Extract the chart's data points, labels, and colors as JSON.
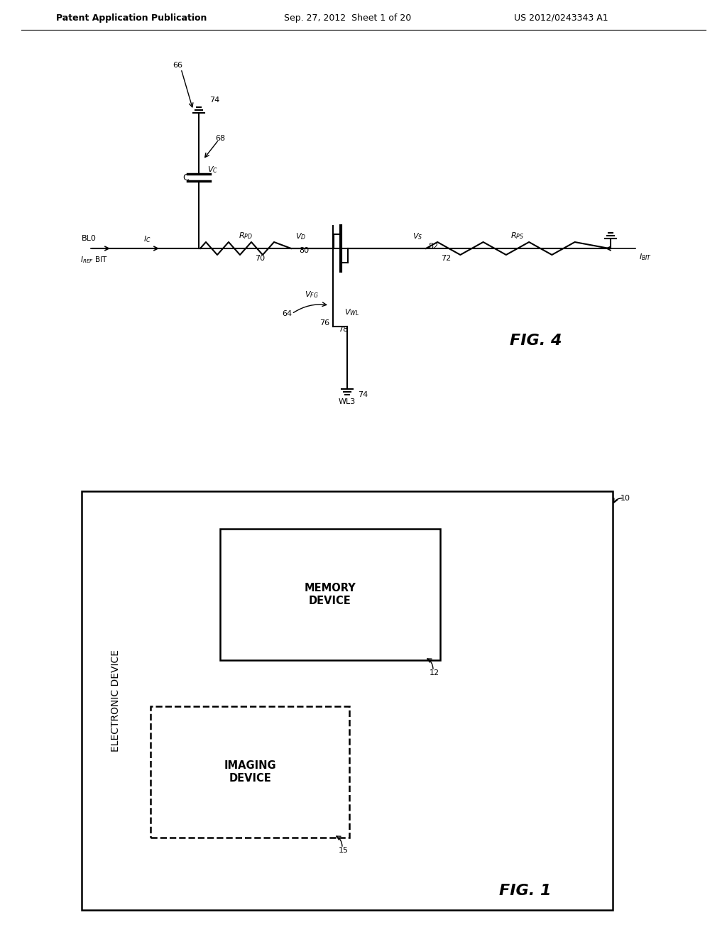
{
  "bg_color": "#ffffff",
  "header_text": "Patent Application Publication",
  "header_date": "Sep. 27, 2012  Sheet 1 of 20",
  "header_patent": "US 2012/0243343 A1",
  "fig4_label": "FIG. 4",
  "fig1_label": "FIG. 1"
}
